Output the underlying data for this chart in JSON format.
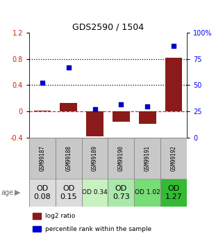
{
  "title": "GDS2590 / 1504",
  "samples": [
    "GSM99187",
    "GSM99188",
    "GSM99189",
    "GSM99190",
    "GSM99191",
    "GSM99192"
  ],
  "log2_ratio": [
    0.02,
    0.13,
    -0.38,
    -0.15,
    -0.18,
    0.82
  ],
  "percentile_rank": [
    52,
    67,
    27,
    32,
    30,
    87
  ],
  "od_values": [
    "OD\n0.08",
    "OD\n0.15",
    "OD 0.34",
    "OD\n0.73",
    "OD 1.02",
    "OD\n1.27"
  ],
  "od_fontsize": [
    8,
    8,
    6.5,
    8,
    6.5,
    8
  ],
  "od_colors": [
    "#dcdcdc",
    "#dcdcdc",
    "#c8f0c0",
    "#aae8aa",
    "#77dd77",
    "#33bb33"
  ],
  "bar_color": "#8b1a1a",
  "dot_color": "#0000cc",
  "ylim_left": [
    -0.4,
    1.2
  ],
  "ylim_right": [
    0,
    100
  ],
  "yticks_left": [
    -0.4,
    0.0,
    0.4,
    0.8,
    1.2
  ],
  "ytick_labels_left": [
    "-0.4",
    "0",
    "0.4",
    "0.8",
    "1.2"
  ],
  "yticks_right": [
    0,
    25,
    50,
    75,
    100
  ],
  "ytick_labels_right": [
    "0",
    "25",
    "50",
    "75",
    "100%"
  ],
  "hlines_dotted": [
    0.4,
    0.8
  ],
  "legend_labels": [
    "log2 ratio",
    "percentile rank within the sample"
  ],
  "age_label": "age",
  "sample_header_color": "#c8c8c8",
  "bar_width": 0.65
}
